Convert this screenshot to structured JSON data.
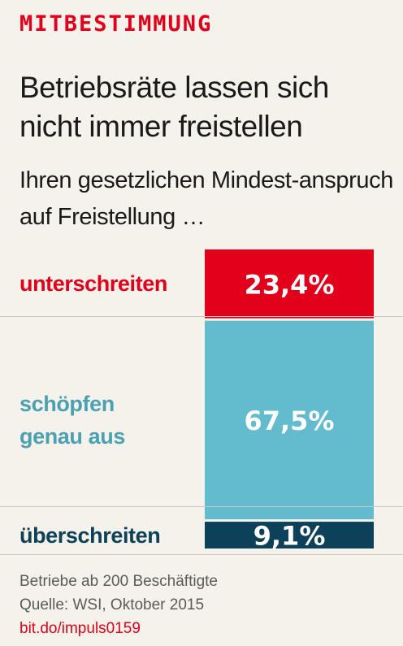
{
  "kicker": "MITBESTIMMUNG",
  "title": "Betriebsräte lassen sich nicht immer freistellen",
  "subtitle": "Ihren gesetzlichen Mindest-anspruch auf Freistellung …",
  "chart_data": {
    "type": "bar",
    "orientation": "stacked-vertical",
    "unit": "%",
    "categories": [
      "unterschreiten",
      "schöpfen genau aus",
      "überschreiten"
    ],
    "values": [
      23.4,
      67.5,
      9.1
    ],
    "value_labels": [
      "23,4%",
      "67,5%",
      "9,1%"
    ],
    "colors": [
      "#e2001a",
      "#62bccd",
      "#0c4159"
    ],
    "label_colors": [
      "#e2001a",
      "#4aa1b3",
      "#0c4159"
    ],
    "label_lines": [
      [
        "unterschreiten"
      ],
      [
        "schöpfen",
        "genau aus"
      ],
      [
        "überschreiten"
      ]
    ]
  },
  "source": {
    "line1": "Betriebe ab 200 Beschäftigte",
    "line2": "Quelle: WSI, Oktober 2015",
    "link": "bit.do/impuls0159"
  }
}
